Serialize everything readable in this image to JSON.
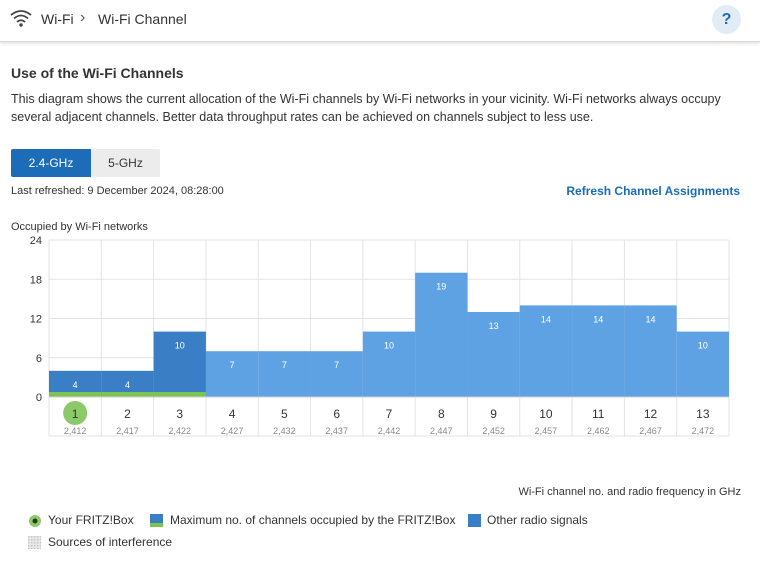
{
  "header": {
    "crumb_1": "Wi-Fi",
    "crumb_separator": "›",
    "crumb_2": "Wi-Fi Channel",
    "help_label": "?"
  },
  "content": {
    "title": "Use of the Wi-Fi Channels",
    "description": "This diagram shows the current allocation of the Wi-Fi channels by Wi-Fi networks in your vicinity. Wi-Fi networks always occupy several adjacent channels. Better data throughput rates can be achieved on channels subject to less use.",
    "tabs": [
      {
        "label": "2.4-GHz",
        "active": true
      },
      {
        "label": "5-GHz",
        "active": false
      }
    ],
    "last_refreshed": "Last refreshed: 9 December 2024, 08:28:00",
    "refresh_link": "Refresh Channel Assignments",
    "xaxis_title": "Wi-Fi channel no. and radio frequency in GHz"
  },
  "chart_data": {
    "type": "bar",
    "ylabel": "Occupied by Wi-Fi networks",
    "ylim": [
      0,
      24
    ],
    "yticks": [
      "24",
      "18",
      "12",
      "6",
      "0"
    ],
    "ytick_values": [
      24,
      18,
      12,
      6,
      0
    ],
    "categories": [
      "1",
      "2",
      "3",
      "4",
      "5",
      "6",
      "7",
      "8",
      "9",
      "10",
      "11",
      "12",
      "13"
    ],
    "frequencies": [
      "2,412",
      "2,417",
      "2,422",
      "2,427",
      "2,432",
      "2,437",
      "2,442",
      "2,447",
      "2,452",
      "2,457",
      "2,462",
      "2,467",
      "2,472"
    ],
    "values": [
      4,
      4,
      10,
      7,
      7,
      7,
      10,
      19,
      13,
      14,
      14,
      14,
      10
    ],
    "value_labels": [
      "4",
      "4",
      "10",
      "7",
      "7",
      "7",
      "10",
      "19",
      "13",
      "14",
      "14",
      "14",
      "10"
    ],
    "fritzbox_channel": 1,
    "fritzbox_occupied_channels": [
      1,
      2,
      3
    ],
    "colors": {
      "fritz_occupied_bar": "#3a7ec5",
      "other_bar": "#5ea2e4",
      "fritz_max_line": "#7cc452",
      "fritz_marker": "#8cc96a",
      "grid": "#e3e3e3"
    }
  },
  "legend": {
    "fritzbox": "Your FRITZ!Box",
    "max_channels": "Maximum no. of channels occupied by the FRITZ!Box",
    "other_signals": "Other radio signals",
    "interference": "Sources of interference"
  }
}
